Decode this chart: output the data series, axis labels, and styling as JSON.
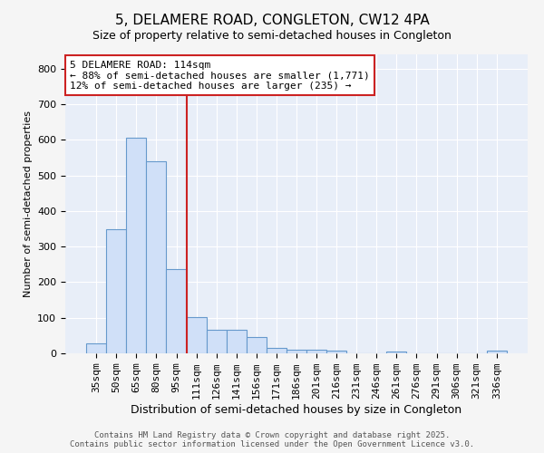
{
  "title1": "5, DELAMERE ROAD, CONGLETON, CW12 4PA",
  "title2": "Size of property relative to semi-detached houses in Congleton",
  "xlabel": "Distribution of semi-detached houses by size in Congleton",
  "ylabel": "Number of semi-detached properties",
  "categories": [
    "35sqm",
    "50sqm",
    "65sqm",
    "80sqm",
    "95sqm",
    "111sqm",
    "126sqm",
    "141sqm",
    "156sqm",
    "171sqm",
    "186sqm",
    "201sqm",
    "216sqm",
    "231sqm",
    "246sqm",
    "261sqm",
    "276sqm",
    "291sqm",
    "306sqm",
    "321sqm",
    "336sqm"
  ],
  "values": [
    28,
    349,
    607,
    540,
    237,
    101,
    66,
    66,
    47,
    15,
    11,
    10,
    7,
    0,
    0,
    6,
    0,
    0,
    0,
    0,
    8
  ],
  "bar_color": "#d0e0f8",
  "bar_edge_color": "#6699cc",
  "vline_x_index": 5,
  "vline_color": "#cc2222",
  "annotation_text": "5 DELAMERE ROAD: 114sqm\n← 88% of semi-detached houses are smaller (1,771)\n12% of semi-detached houses are larger (235) →",
  "annotation_box_facecolor": "#ffffff",
  "annotation_box_edgecolor": "#cc2222",
  "ylim": [
    0,
    840
  ],
  "yticks": [
    0,
    100,
    200,
    300,
    400,
    500,
    600,
    700,
    800
  ],
  "footer1": "Contains HM Land Registry data © Crown copyright and database right 2025.",
  "footer2": "Contains public sector information licensed under the Open Government Licence v3.0.",
  "bg_color": "#f5f5f5",
  "plot_bg_color": "#e8eef8",
  "grid_color": "#ffffff",
  "title_fontsize": 11,
  "subtitle_fontsize": 9,
  "xlabel_fontsize": 9,
  "ylabel_fontsize": 8,
  "tick_fontsize": 8,
  "annotation_fontsize": 8,
  "footer_fontsize": 6.5
}
